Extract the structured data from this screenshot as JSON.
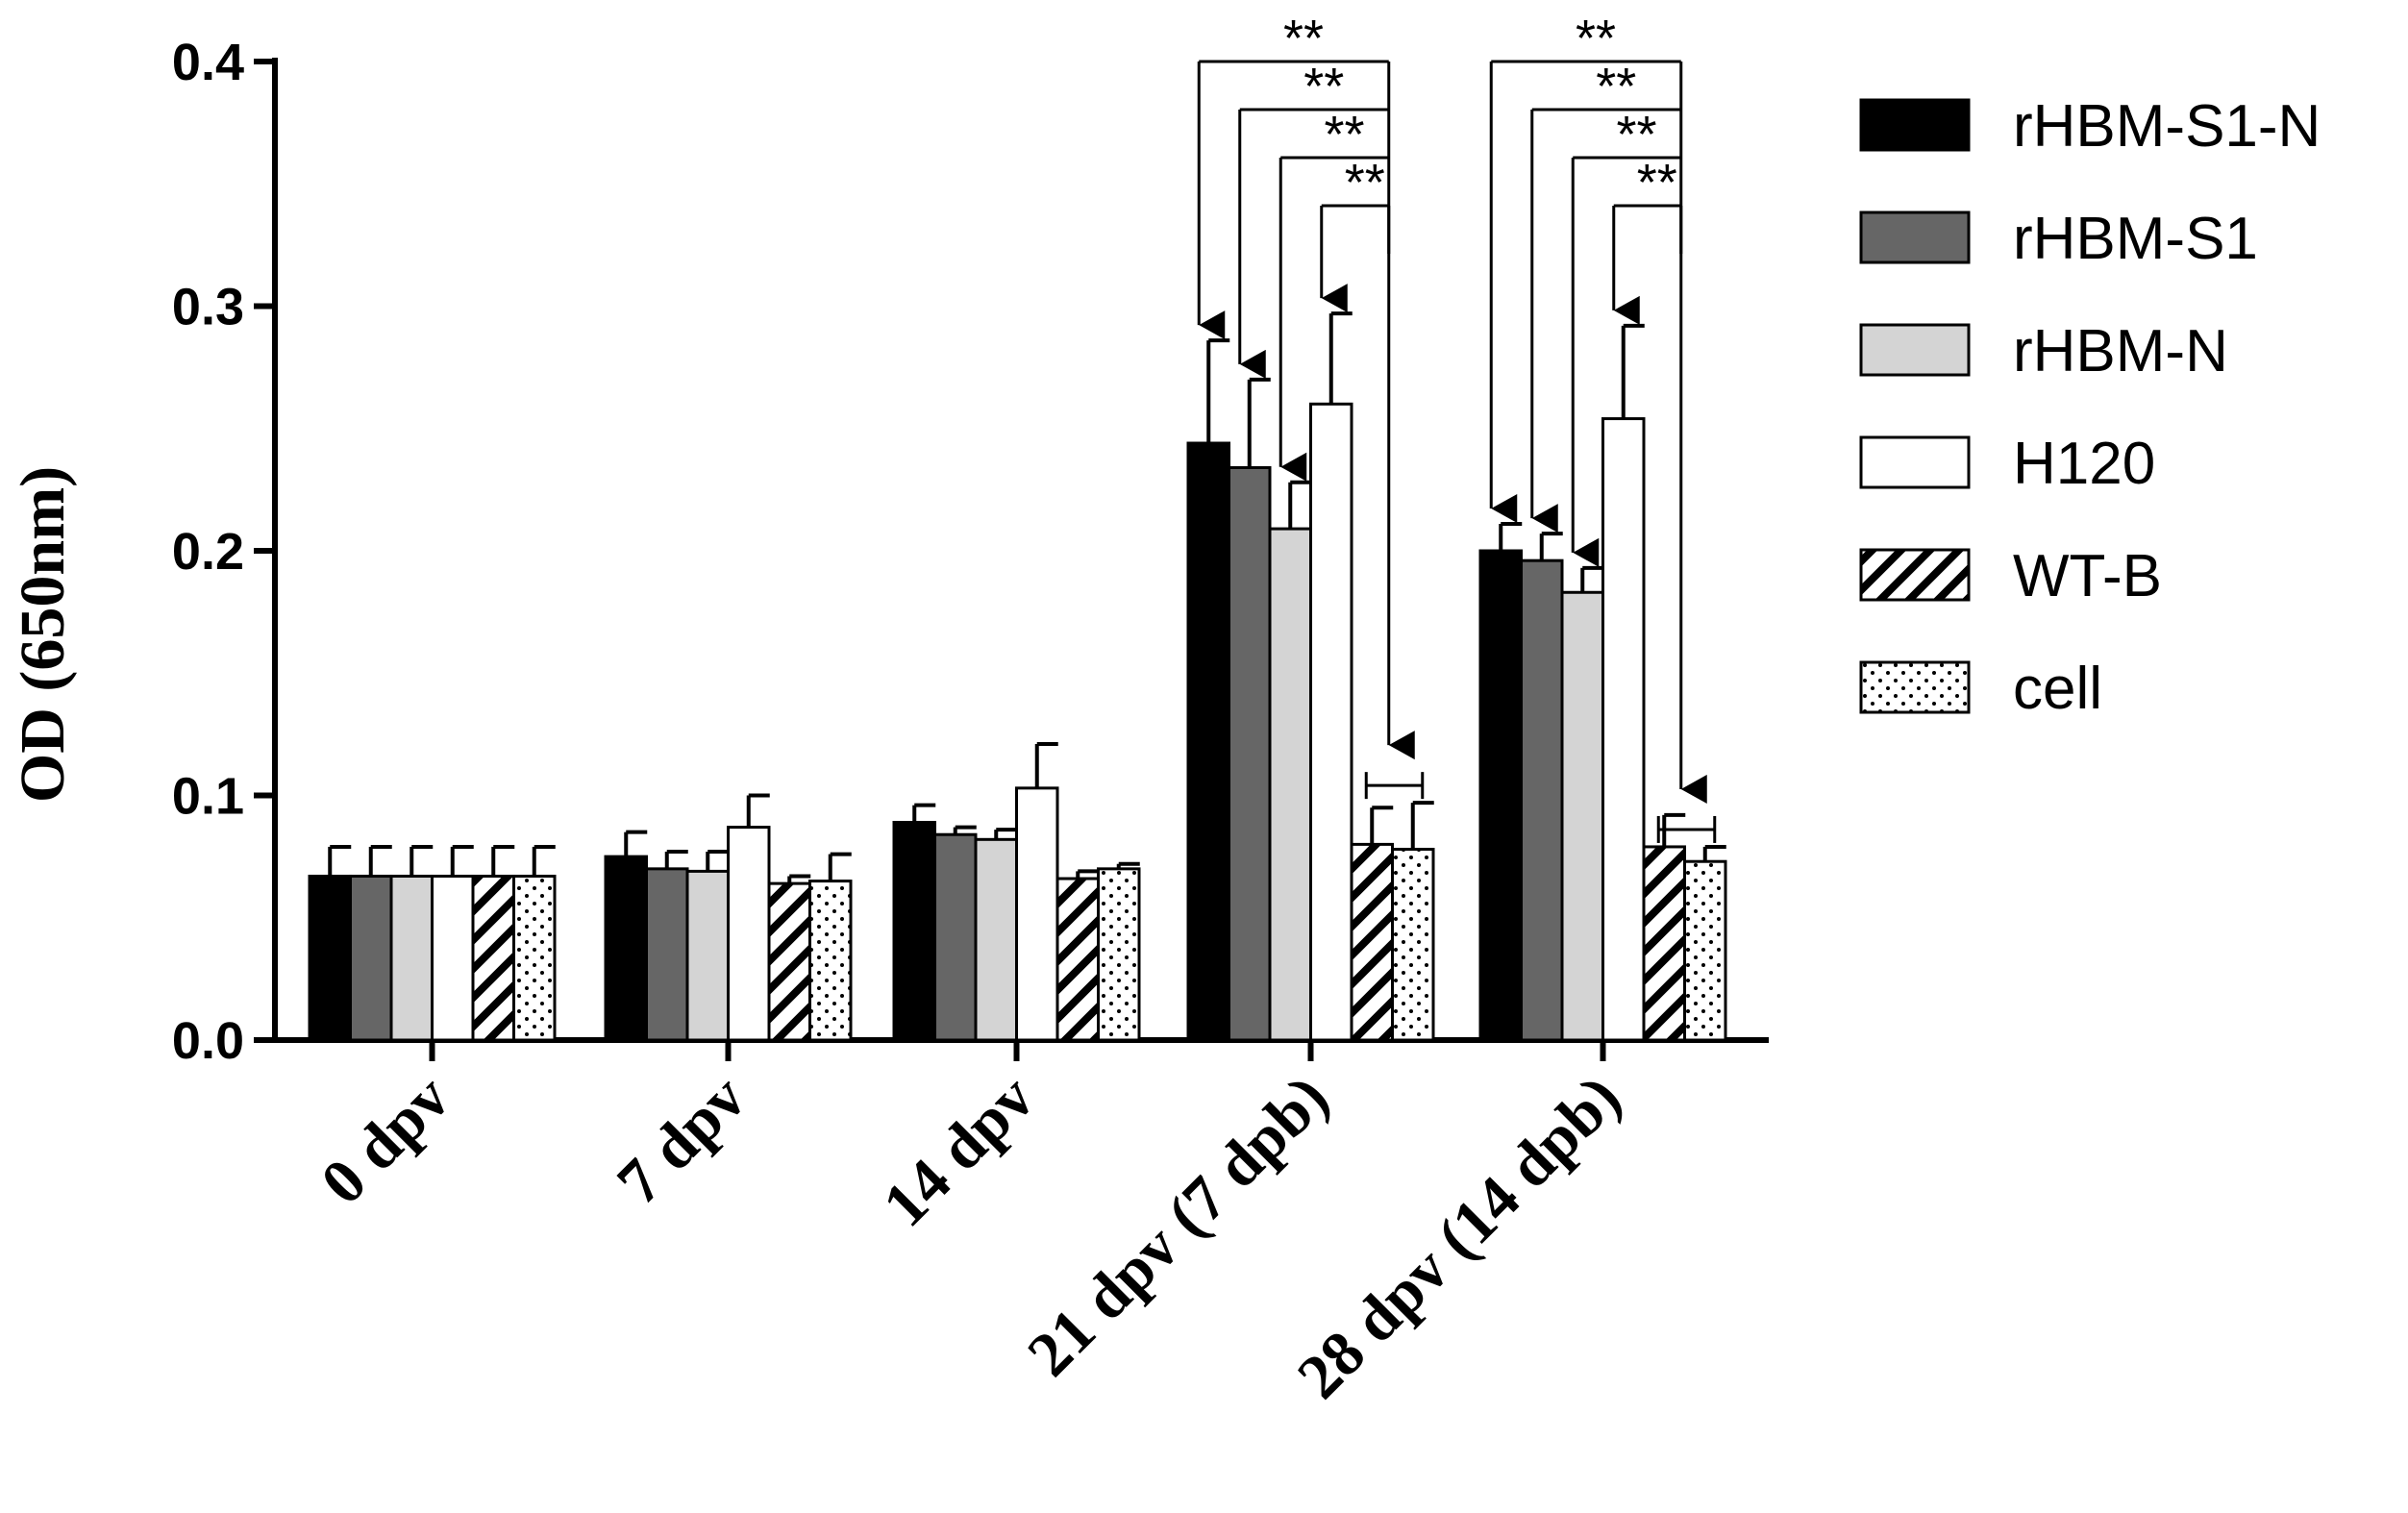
{
  "chart_data": {
    "type": "bar",
    "title": "",
    "xlabel": "",
    "ylabel": "OD (650nm)",
    "ylim": [
      0,
      0.4
    ],
    "yticks": [
      "0.0",
      "0.1",
      "0.2",
      "0.3",
      "0.4"
    ],
    "categories": [
      "0 dpv",
      "7 dpv",
      "14 dpv",
      "21 dpv (7 dpb)",
      "28 dpv (14 dpb)"
    ],
    "series": [
      {
        "name": "rHBM-S1-N",
        "fill": "#000000",
        "pattern": "solid",
        "values": [
          0.067,
          0.075,
          0.089,
          0.244,
          0.2
        ],
        "errors": [
          0.012,
          0.01,
          0.007,
          0.042,
          0.011
        ]
      },
      {
        "name": "rHBM-S1",
        "fill": "#666666",
        "pattern": "solid",
        "values": [
          0.067,
          0.07,
          0.084,
          0.234,
          0.196
        ],
        "errors": [
          0.012,
          0.007,
          0.003,
          0.036,
          0.011
        ]
      },
      {
        "name": "rHBM-N",
        "fill": "#d4d4d4",
        "pattern": "solid",
        "values": [
          0.067,
          0.069,
          0.082,
          0.209,
          0.183
        ],
        "errors": [
          0.012,
          0.008,
          0.004,
          0.019,
          0.01
        ]
      },
      {
        "name": "H120",
        "fill": "#ffffff",
        "pattern": "solid",
        "values": [
          0.067,
          0.087,
          0.103,
          0.26,
          0.254
        ],
        "errors": [
          0.012,
          0.013,
          0.018,
          0.037,
          0.038
        ]
      },
      {
        "name": "WT-B",
        "fill": "#ffffff",
        "pattern": "hatch",
        "values": [
          0.067,
          0.064,
          0.066,
          0.08,
          0.079
        ],
        "errors": [
          0.012,
          0.003,
          0.003,
          0.015,
          0.013
        ]
      },
      {
        "name": "cell",
        "fill": "#ffffff",
        "pattern": "dots",
        "values": [
          0.067,
          0.065,
          0.07,
          0.078,
          0.073
        ],
        "errors": [
          0.012,
          0.011,
          0.002,
          0.019,
          0.006
        ]
      }
    ],
    "significance": {
      "label": "**",
      "groups": [
        {
          "category_index": 3,
          "comparisons": [
            [
              0,
              5
            ],
            [
              1,
              5
            ],
            [
              2,
              5
            ],
            [
              3,
              5
            ]
          ]
        },
        {
          "category_index": 4,
          "comparisons": [
            [
              0,
              5
            ],
            [
              1,
              5
            ],
            [
              2,
              5
            ],
            [
              3,
              5
            ]
          ]
        }
      ]
    },
    "legend": "right",
    "grid": false
  }
}
